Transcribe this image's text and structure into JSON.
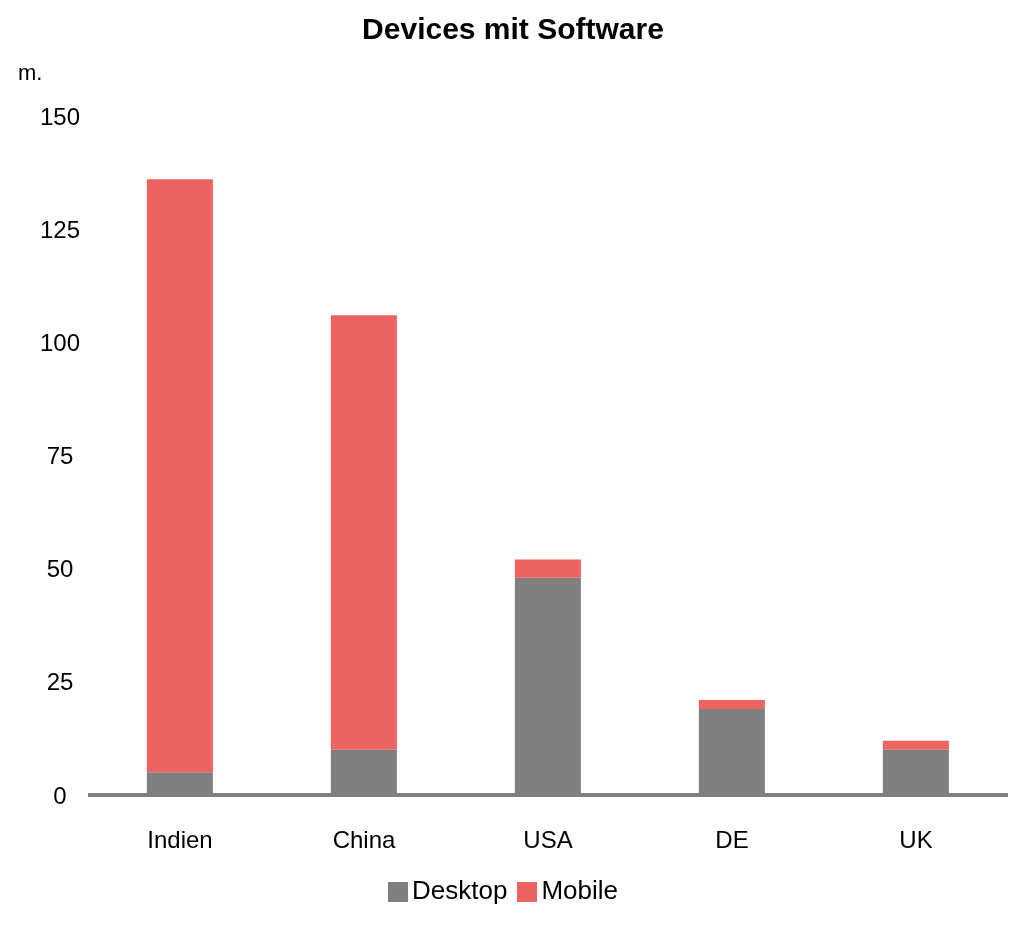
{
  "chart_data": {
    "type": "bar",
    "title": "Devices mit Software",
    "ylabel": "m.",
    "categories": [
      "Indien",
      "China",
      "USA",
      "DE",
      "UK"
    ],
    "stacked": true,
    "series": [
      {
        "name": "Desktop",
        "color": "#7f7f7f",
        "values": [
          5,
          10,
          48,
          19,
          10
        ]
      },
      {
        "name": "Mobile",
        "color": "#ec6461",
        "values": [
          131,
          96,
          4,
          2,
          2
        ]
      }
    ],
    "ylim": [
      0,
      150
    ],
    "yticks": [
      0,
      25,
      50,
      75,
      100,
      125,
      150
    ],
    "grid": false,
    "legend": "bottom"
  }
}
